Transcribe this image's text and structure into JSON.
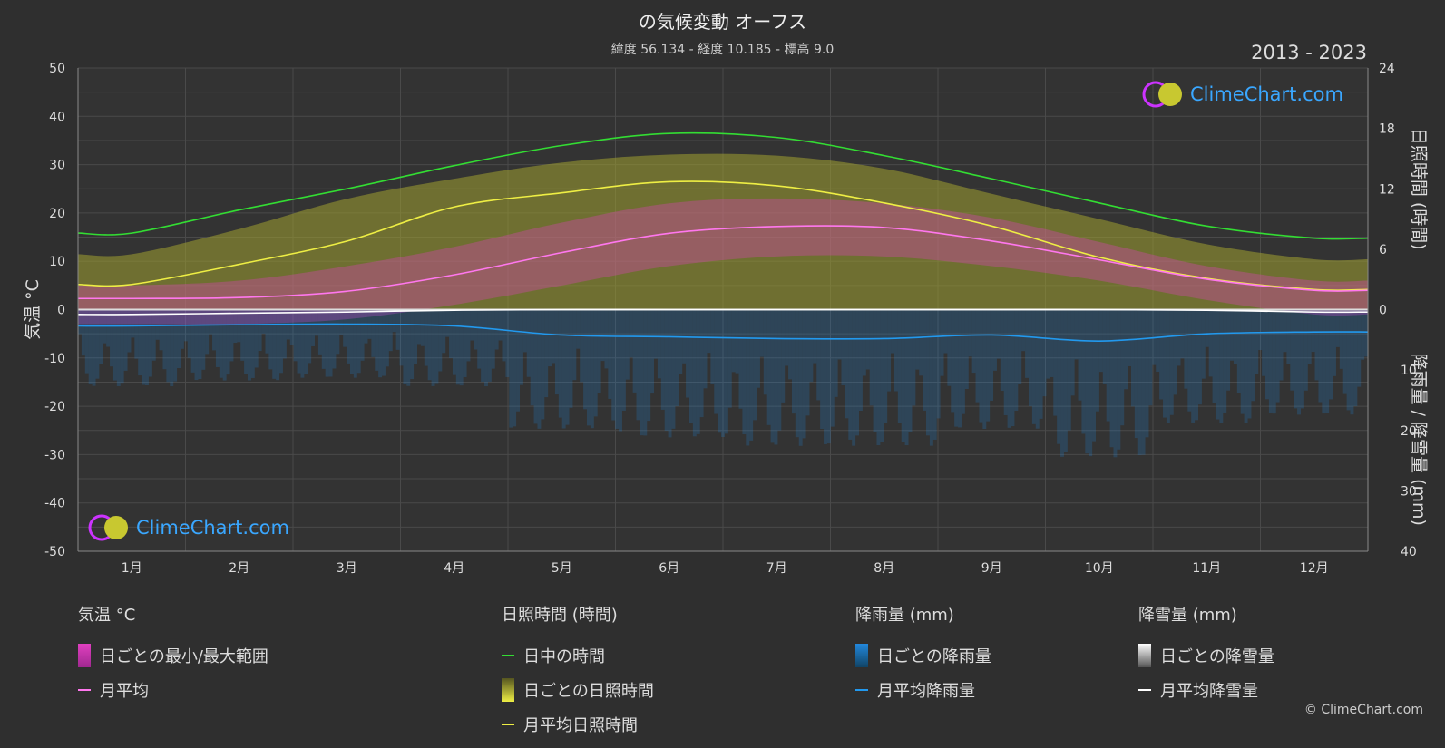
{
  "title": "の気候変動 オーフス",
  "subtitle": "緯度 56.134 - 経度 10.185 - 標高 9.0",
  "year_range": "2013 - 2023",
  "logo_text": "ClimeChart.com",
  "copyright": "© ClimeChart.com",
  "colors": {
    "background": "#2f2f2f",
    "daylight": "#33dd33",
    "sunshine_line": "#eeee44",
    "sunshine_fill": "#a0a030",
    "temp_range": "#e040c0",
    "temp_avg": "#ff77ee",
    "rain": "#2288dd",
    "rain_avg": "#2299ee",
    "snow": "#dddddd",
    "snow_avg": "#ffffff"
  },
  "chart_data": {
    "type": "line",
    "categories": [
      "1月",
      "2月",
      "3月",
      "4月",
      "5月",
      "6月",
      "7月",
      "8月",
      "9月",
      "10月",
      "11月",
      "12月"
    ],
    "y_left": {
      "label": "気温 °C",
      "range": [
        -50,
        50
      ],
      "ticks": [
        50,
        40,
        30,
        20,
        10,
        0,
        -10,
        -20,
        -30,
        -40,
        -50
      ]
    },
    "y_right_top": {
      "label": "日照時間 (時間)",
      "range": [
        0,
        24
      ],
      "ticks": [
        24,
        18,
        12,
        6,
        0
      ]
    },
    "y_right_bottom": {
      "label": "降雨量 / 降雪量 (mm)",
      "range": [
        0,
        40
      ],
      "ticks": [
        10,
        20,
        30,
        40
      ]
    },
    "grid": true,
    "series": [
      {
        "name": "日中の時間",
        "axis": "hours",
        "values": [
          7.6,
          9.9,
          12.0,
          14.3,
          16.3,
          17.5,
          17.1,
          15.3,
          13.0,
          10.6,
          8.3,
          7.1
        ]
      },
      {
        "name": "月平均日照時間",
        "axis": "hours",
        "values": [
          2.5,
          4.5,
          6.8,
          10.2,
          11.6,
          12.7,
          12.3,
          10.6,
          8.3,
          5.2,
          3.1,
          2.0
        ]
      },
      {
        "name": "月平均",
        "axis": "temp",
        "values": [
          2.3,
          2.5,
          3.8,
          7.2,
          11.8,
          15.8,
          17.2,
          17.0,
          14.2,
          10.3,
          6.3,
          4.0
        ]
      },
      {
        "name": "月平均降雨量",
        "axis": "mm",
        "values": [
          2.7,
          2.5,
          2.4,
          2.7,
          4.2,
          4.5,
          4.8,
          4.8,
          4.2,
          5.2,
          4.0,
          3.7
        ]
      },
      {
        "name": "月平均降雪量",
        "axis": "mm",
        "values": [
          0.8,
          0.6,
          0.4,
          0.1,
          0.0,
          0.0,
          0.0,
          0.0,
          0.0,
          0.0,
          0.1,
          0.4
        ]
      }
    ],
    "daily_sunshine_max": [
      5.5,
      8.0,
      11.0,
      13.0,
      14.6,
      15.4,
      15.3,
      14.0,
      11.5,
      9.0,
      6.5,
      5.0
    ],
    "daily_temp_range": {
      "min": [
        -3,
        -3,
        -2,
        1,
        5,
        9,
        11,
        11,
        9,
        6,
        2,
        -1
      ],
      "max": [
        5,
        6,
        9,
        13,
        18,
        22,
        23,
        22,
        19,
        14,
        9,
        6
      ]
    }
  },
  "legend": {
    "temp": {
      "header": "気温 °C",
      "items": [
        "日ごとの最小/最大範囲",
        "月平均"
      ]
    },
    "sun": {
      "header": "日照時間 (時間)",
      "items": [
        "日中の時間",
        "日ごとの日照時間",
        "月平均日照時間"
      ]
    },
    "rain": {
      "header": "降雨量 (mm)",
      "items": [
        "日ごとの降雨量",
        "月平均降雨量"
      ]
    },
    "snow": {
      "header": "降雪量 (mm)",
      "items": [
        "日ごとの降雪量",
        "月平均降雪量"
      ]
    }
  }
}
